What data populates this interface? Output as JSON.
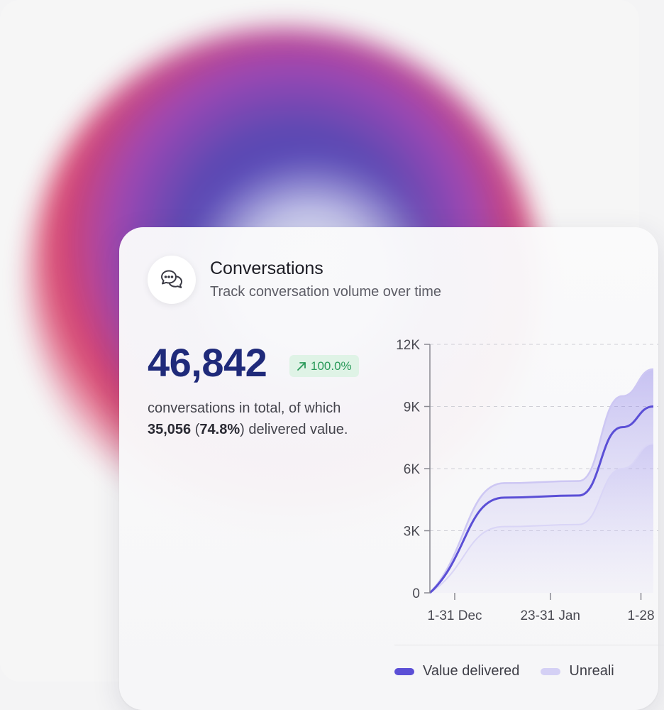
{
  "card": {
    "title": "Conversations",
    "subtitle": "Track conversation volume over time",
    "icon": "chat-bubbles-icon"
  },
  "stats": {
    "total": "46,842",
    "change": "100.0%",
    "change_icon": "arrow-up-right-icon",
    "desc_prefix": "conversations in total, of which",
    "delivered_count": "35,056",
    "delivered_pct": "74.8%",
    "desc_suffix": "delivered value."
  },
  "colors": {
    "primary": "#5b4fd6",
    "secondary": "#d4d0f5",
    "number": "#1f2a7a",
    "badge_bg": "#dff3e6",
    "badge_text": "#2a9a5a"
  },
  "chart_data": {
    "type": "area",
    "y_ticks": [
      "12K",
      "9K",
      "6K",
      "3K",
      "0"
    ],
    "ylim": [
      0,
      12000
    ],
    "grid": true,
    "categories": [
      "1-31 Dec",
      "23-31 Jan",
      "1-28"
    ],
    "legend_position": "bottom",
    "series": [
      {
        "name": "Value delivered",
        "color": "#5b4fd6",
        "x": [
          0,
          0.6,
          1.2,
          1.55,
          1.8
        ],
        "values": [
          0,
          4600,
          4700,
          8000,
          9000
        ]
      },
      {
        "name": "Unreali",
        "color": "#d4d0f5",
        "x": [
          0,
          0.6,
          1.2,
          1.55,
          1.8
        ],
        "values": [
          0,
          5300,
          5400,
          9500,
          10800
        ]
      },
      {
        "x": [
          0,
          0.6,
          1.2,
          1.55,
          1.8
        ],
        "values": [
          0,
          3200,
          3300,
          6000,
          7200
        ]
      }
    ]
  }
}
